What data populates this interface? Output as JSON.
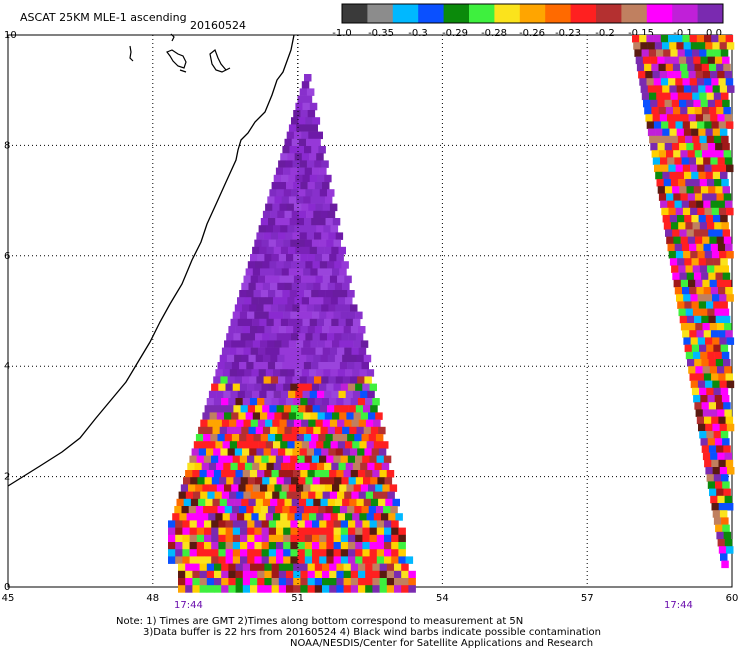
{
  "header": {
    "product": "ASCAT 25KM MLE-1 ascending",
    "date": "20160524"
  },
  "colorbar": {
    "segments": [
      {
        "color": "#3a3a3a"
      },
      {
        "color": "#8c8c8c"
      },
      {
        "color": "#00b8ff"
      },
      {
        "color": "#0a50ff"
      },
      {
        "color": "#0b8a0b"
      },
      {
        "color": "#3ef03e"
      },
      {
        "color": "#fbe31c"
      },
      {
        "color": "#ffa500"
      },
      {
        "color": "#ff6a00"
      },
      {
        "color": "#ff2020"
      },
      {
        "color": "#b43030"
      },
      {
        "color": "#c08060"
      },
      {
        "color": "#ff00ff"
      },
      {
        "color": "#c020d8"
      },
      {
        "color": "#7a2ab0"
      }
    ],
    "labels": [
      "-1.0",
      "-0.35",
      "-0.3",
      "-0.29",
      "-0.28",
      "-0.26",
      "-0.23",
      "-0.2",
      "-0.15",
      "-0.1",
      "0.0"
    ]
  },
  "axes": {
    "x_ticks": [
      "45",
      "48",
      "51",
      "54",
      "57",
      "60"
    ],
    "y_ticks": [
      "10",
      "8",
      "6",
      "4",
      "2",
      "0"
    ],
    "x_range": [
      45,
      60
    ],
    "y_range": [
      0,
      10
    ]
  },
  "swaths": [
    {
      "time": "17:44"
    },
    {
      "time": "17:44"
    }
  ],
  "notes": {
    "line1": "Note: 1) Times are GMT 2)Times along bottom correspond to measurement at 5N",
    "line2": "3)Data buffer is 22 hrs from 20160524 4) Black wind barbs indicate possible contamination",
    "line3": "NOAA/NESDIS/Center for Satellite Applications and Research"
  }
}
